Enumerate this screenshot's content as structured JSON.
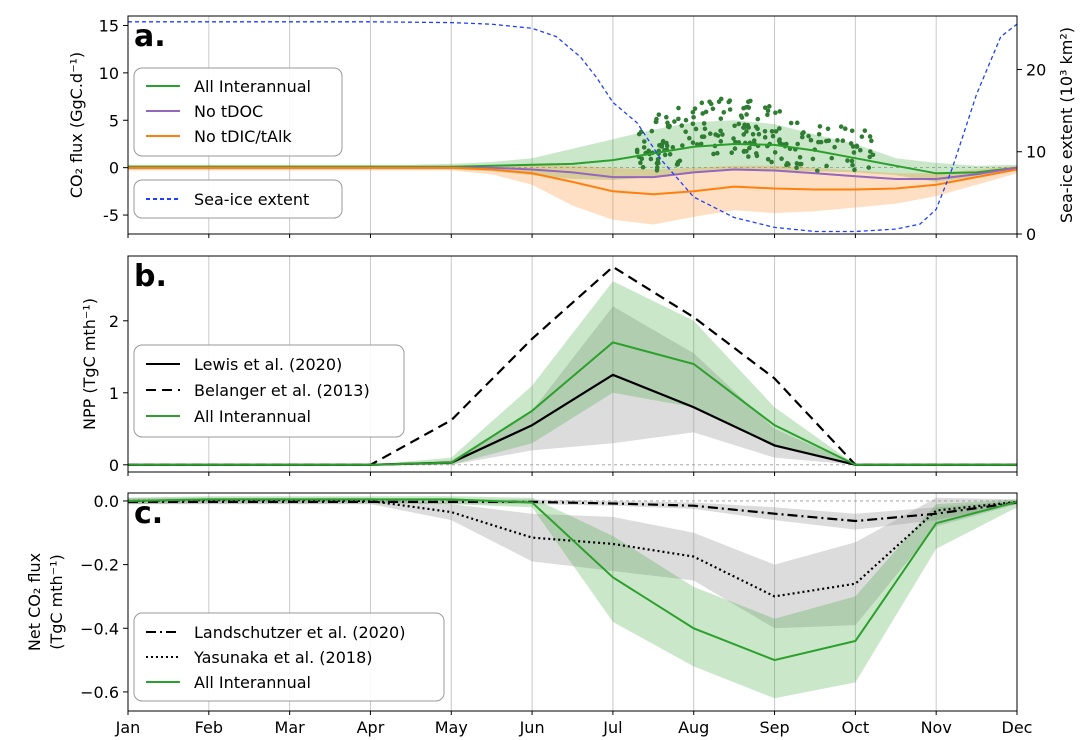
{
  "months": [
    "Jan",
    "Feb",
    "Mar",
    "Apr",
    "May",
    "Jun",
    "Jul",
    "Aug",
    "Sep",
    "Oct",
    "Nov",
    "Dec"
  ],
  "colors": {
    "green": "#2ca02c",
    "purple": "#9467bd",
    "orange": "#ff7f0e",
    "blue": "#1f3fff",
    "black": "#000000",
    "grey_band": "#9a9a9a",
    "scatter": "#2e7d32"
  },
  "chart_data": [
    {
      "id": "a",
      "type": "line",
      "panel_label": "a.",
      "ylabel": "CO₂ flux (GgC.d⁻¹)",
      "ylabel_right": "Sea-ice extent (10³ km²)",
      "ylim": [
        -7,
        16
      ],
      "yticks": [
        -5,
        0,
        5,
        10,
        15
      ],
      "ylim_right": [
        0,
        26.5
      ],
      "yticks_right": [
        0,
        10,
        20
      ],
      "grid": "vertical",
      "legend_position": "upper-left",
      "x_months": [
        0.0,
        0.5,
        1.0,
        1.5,
        2.0,
        2.5,
        3.0,
        3.5,
        4.0,
        4.5,
        5.0,
        5.5,
        6.0,
        6.5,
        7.0,
        7.5,
        8.0,
        8.5,
        9.0,
        9.5,
        10.0,
        10.5,
        11.0
      ],
      "series": [
        {
          "name": "All Interannual",
          "color": "green",
          "values": [
            0.1,
            0.1,
            0.1,
            0.1,
            0.1,
            0.1,
            0.1,
            0.1,
            0.1,
            0.2,
            0.3,
            0.4,
            0.8,
            1.5,
            2.2,
            2.5,
            2.4,
            1.8,
            1.0,
            0.2,
            -0.6,
            -0.5,
            0.0
          ],
          "band_lower": [
            -0.2,
            -0.2,
            -0.2,
            -0.2,
            -0.2,
            -0.2,
            -0.2,
            -0.2,
            -0.2,
            -0.4,
            -0.8,
            -1.2,
            -1.3,
            -1.0,
            -0.5,
            -0.3,
            -0.3,
            -0.4,
            -0.5,
            -0.8,
            -1.5,
            -1.0,
            -0.3
          ],
          "band_upper": [
            0.3,
            0.3,
            0.3,
            0.3,
            0.3,
            0.3,
            0.3,
            0.3,
            0.4,
            0.6,
            1.0,
            2.0,
            3.0,
            4.0,
            4.8,
            5.0,
            4.6,
            3.5,
            2.5,
            1.0,
            0.5,
            0.2,
            0.3
          ]
        },
        {
          "name": "No tDOC",
          "color": "purple",
          "values": [
            0.0,
            0.0,
            0.0,
            0.0,
            0.0,
            0.0,
            0.0,
            0.0,
            0.0,
            0.0,
            -0.2,
            -0.5,
            -1.0,
            -1.0,
            -0.5,
            -0.2,
            -0.3,
            -0.6,
            -0.9,
            -1.2,
            -1.2,
            -0.7,
            0.0
          ]
        },
        {
          "name": "No tDIC/tAlk",
          "color": "orange",
          "values": [
            0.0,
            0.0,
            0.0,
            0.0,
            0.0,
            0.0,
            0.0,
            0.0,
            0.0,
            -0.2,
            -0.6,
            -1.5,
            -2.5,
            -2.8,
            -2.5,
            -2.0,
            -2.2,
            -2.3,
            -2.3,
            -2.2,
            -1.8,
            -1.0,
            -0.2
          ],
          "band_lower": [
            -0.3,
            -0.3,
            -0.3,
            -0.3,
            -0.3,
            -0.3,
            -0.3,
            -0.3,
            -0.3,
            -0.7,
            -1.8,
            -4.0,
            -5.5,
            -6.0,
            -5.2,
            -4.5,
            -4.8,
            -4.6,
            -4.2,
            -3.8,
            -3.0,
            -1.8,
            -0.6
          ],
          "band_upper": [
            0.2,
            0.2,
            0.2,
            0.2,
            0.2,
            0.2,
            0.2,
            0.2,
            0.2,
            0.2,
            0.3,
            0.2,
            0.0,
            -0.2,
            0.0,
            0.2,
            0.2,
            0.0,
            -0.3,
            -0.6,
            -0.6,
            -0.2,
            0.2
          ]
        },
        {
          "name": "Sea-ice extent",
          "color": "blue",
          "dashed": true,
          "axis": "right",
          "x": [
            0,
            1,
            2,
            3,
            4,
            4.5,
            5,
            5.3,
            5.6,
            5.8,
            6.0,
            6.3,
            6.6,
            7.0,
            7.5,
            8.0,
            8.5,
            9.0,
            9.5,
            9.8,
            10.0,
            10.2,
            10.5,
            10.8,
            11.0
          ],
          "values": [
            25.8,
            25.8,
            25.8,
            25.8,
            25.7,
            25.5,
            25.0,
            24.0,
            21.5,
            19.0,
            16.0,
            13.5,
            9.0,
            4.5,
            2.0,
            0.8,
            0.3,
            0.3,
            0.6,
            1.2,
            3.0,
            8.0,
            17.0,
            24.0,
            25.5
          ]
        }
      ],
      "scatter_note": "individual model years (green dots, Jun–Oct)"
    },
    {
      "id": "b",
      "type": "line",
      "panel_label": "b.",
      "ylabel": "NPP (TgC mth⁻¹)",
      "ylim": [
        -0.1,
        2.9
      ],
      "yticks": [
        0,
        1,
        2
      ],
      "grid": "vertical",
      "legend_position": "center-left",
      "series": [
        {
          "name": "Lewis et al. (2020)",
          "color": "black",
          "style": "solid",
          "values": [
            0,
            0,
            0,
            0,
            0.03,
            0.55,
            1.25,
            0.8,
            0.27,
            0.0,
            0,
            0
          ],
          "band_lower": [
            0,
            0,
            0,
            0,
            0.0,
            0.2,
            0.3,
            0.45,
            0.1,
            0.0,
            0,
            0
          ],
          "band_upper": [
            0,
            0,
            0,
            0,
            0.06,
            0.75,
            2.2,
            1.55,
            0.5,
            0.0,
            0,
            0
          ]
        },
        {
          "name": "Belanger et al. (2013)",
          "color": "black",
          "style": "dashed",
          "values": [
            0,
            0,
            0,
            0,
            0.62,
            1.75,
            2.75,
            2.05,
            1.2,
            0.0,
            0,
            0
          ]
        },
        {
          "name": "All Interannual",
          "color": "green",
          "style": "solid",
          "values": [
            0,
            0,
            0,
            0,
            0.03,
            0.75,
            1.7,
            1.4,
            0.55,
            0.0,
            0,
            0
          ],
          "band_lower": [
            0,
            0,
            0,
            0,
            0.0,
            0.3,
            1.0,
            0.8,
            0.25,
            0.0,
            0,
            0
          ],
          "band_upper": [
            0,
            0,
            0,
            0,
            0.1,
            1.1,
            2.55,
            2.0,
            0.8,
            0.0,
            0,
            0
          ]
        }
      ]
    },
    {
      "id": "c",
      "type": "line",
      "panel_label": "c.",
      "ylabel": "Net CO₂ flux",
      "ylabel2": "(TgC mth⁻¹)",
      "ylim": [
        -0.66,
        0.025
      ],
      "yticks": [
        -0.6,
        -0.4,
        -0.2,
        0.0
      ],
      "ytick_labels": [
        "−0.6",
        "−0.4",
        "−0.2",
        "0.0"
      ],
      "grid": "vertical",
      "legend_position": "lower-left",
      "series": [
        {
          "name": "Landschutzer et al. (2020)",
          "color": "black",
          "style": "dashdot",
          "values": [
            -0.003,
            -0.003,
            -0.003,
            -0.003,
            -0.003,
            -0.003,
            -0.008,
            -0.015,
            -0.04,
            -0.063,
            -0.04,
            -0.005
          ],
          "band_lower": [
            -0.01,
            -0.01,
            -0.01,
            -0.01,
            -0.01,
            -0.01,
            -0.015,
            -0.025,
            -0.06,
            -0.09,
            -0.06,
            -0.01
          ],
          "band_upper": [
            0.005,
            0.005,
            0.005,
            0.005,
            0.005,
            0.005,
            0.0,
            -0.005,
            -0.02,
            -0.04,
            -0.02,
            0.0
          ]
        },
        {
          "name": "Yasunaka et al. (2018)",
          "color": "black",
          "style": "dotted",
          "values": [
            0.0,
            0.003,
            0.003,
            0.0,
            -0.035,
            -0.115,
            -0.135,
            -0.175,
            -0.3,
            -0.26,
            -0.03,
            -0.003
          ],
          "band_lower": [
            -0.01,
            -0.01,
            -0.01,
            -0.01,
            -0.06,
            -0.19,
            -0.22,
            -0.25,
            -0.4,
            -0.39,
            -0.08,
            -0.01
          ],
          "band_upper": [
            0.01,
            0.01,
            0.01,
            0.01,
            -0.01,
            -0.04,
            -0.05,
            -0.1,
            -0.2,
            -0.13,
            0.01,
            0.005
          ]
        },
        {
          "name": "All Interannual",
          "color": "green",
          "style": "solid",
          "values": [
            0.0,
            0.005,
            0.005,
            0.005,
            0.005,
            -0.005,
            -0.24,
            -0.4,
            -0.5,
            -0.44,
            -0.07,
            -0.003
          ],
          "band_lower": [
            -0.01,
            -0.005,
            -0.005,
            -0.005,
            -0.01,
            -0.02,
            -0.38,
            -0.52,
            -0.62,
            -0.57,
            -0.15,
            -0.02
          ],
          "band_upper": [
            0.01,
            0.015,
            0.015,
            0.015,
            0.015,
            0.01,
            -0.11,
            -0.27,
            -0.37,
            -0.3,
            -0.01,
            0.005
          ]
        }
      ]
    }
  ]
}
